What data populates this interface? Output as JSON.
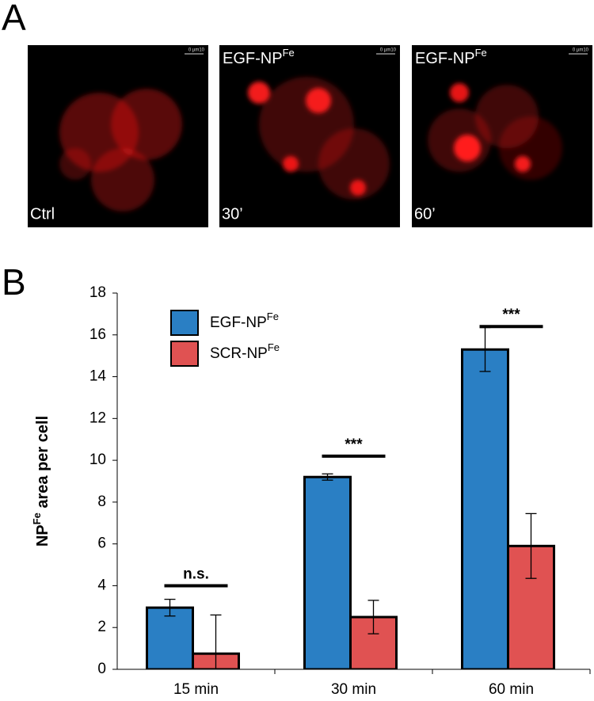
{
  "panel_a": {
    "label": "A",
    "images": [
      {
        "top_label": null,
        "top_label_sup": null,
        "bottom_label": "Ctrl",
        "scale": "0 µm10"
      },
      {
        "top_label": "EGF-NP",
        "top_label_sup": "Fe",
        "bottom_label": "30’",
        "scale": "0 µm10"
      },
      {
        "top_label": "EGF-NP",
        "top_label_sup": "Fe",
        "bottom_label": "60’",
        "scale": "0 µm10"
      }
    ]
  },
  "panel_b": {
    "label": "B"
  },
  "chart_data": {
    "type": "bar",
    "y_label": {
      "base": "NP",
      "sup": "Fe",
      "rest": " area per cell"
    },
    "categories": [
      "15 min",
      "30 min",
      "60 min"
    ],
    "series": [
      {
        "name": "EGF-NP",
        "name_sup": "Fe",
        "color": "#2a7fc4",
        "values": [
          2.95,
          9.2,
          15.3
        ],
        "errors": [
          0.4,
          0.15,
          1.05
        ]
      },
      {
        "name": "SCR-NP",
        "name_sup": "Fe",
        "color": "#e05252",
        "values": [
          0.75,
          2.5,
          5.9
        ],
        "errors": [
          1.85,
          0.8,
          1.55
        ]
      }
    ],
    "annotations": [
      {
        "text": "n.s.",
        "y": 4.0
      },
      {
        "text": "***",
        "y": 10.2
      },
      {
        "text": "***",
        "y": 16.4
      }
    ],
    "ylim": [
      0,
      18
    ],
    "yticks": [
      0,
      2,
      4,
      6,
      8,
      10,
      12,
      14,
      16,
      18
    ],
    "grid": false
  }
}
